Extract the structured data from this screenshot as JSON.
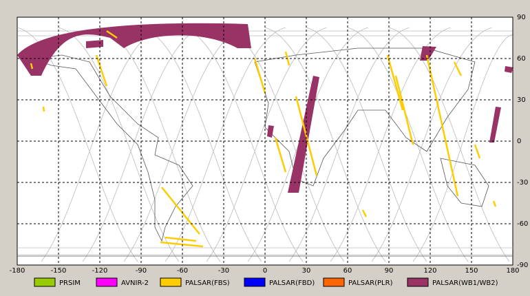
{
  "map": {
    "lon_ticks": [
      -180,
      -150,
      -120,
      -90,
      -60,
      -30,
      0,
      30,
      60,
      90,
      120,
      150,
      180
    ],
    "lat_ticks": [
      90,
      60,
      30,
      0,
      -30,
      -60,
      -90
    ],
    "lon_range": [
      -180,
      180
    ],
    "lat_range": [
      -90,
      90
    ],
    "legend": [
      {
        "label": "PRSIM",
        "color": "#99cc00"
      },
      {
        "label": "AVNIR-2",
        "color": "#ff00ff"
      },
      {
        "label": "PALSAR(FBS)",
        "color": "#ffcc00"
      },
      {
        "label": "PALSAR(FBD)",
        "color": "#0000ff"
      },
      {
        "label": "PALSAR(PLR)",
        "color": "#ff6600"
      },
      {
        "label": "PALSAR(WB1/WB2)",
        "color": "#993366"
      }
    ]
  }
}
